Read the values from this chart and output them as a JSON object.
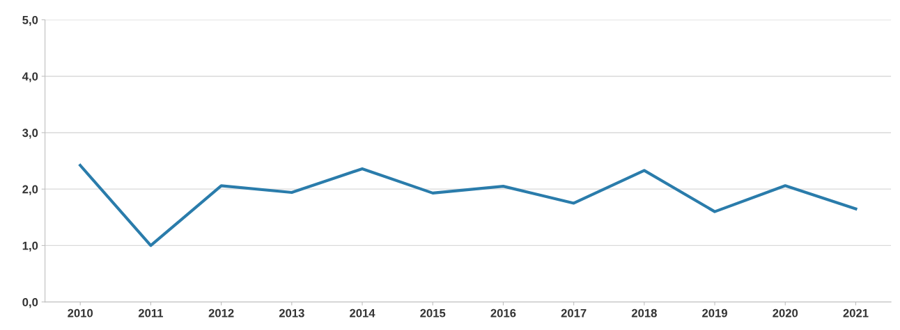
{
  "chart_data": {
    "type": "line",
    "categories": [
      "2010",
      "2011",
      "2012",
      "2013",
      "2014",
      "2015",
      "2016",
      "2017",
      "2018",
      "2019",
      "2020",
      "2021"
    ],
    "series": [
      {
        "color": "#2a7cab",
        "values": [
          2.42,
          1.0,
          2.06,
          1.94,
          2.36,
          1.93,
          2.05,
          1.75,
          2.33,
          1.6,
          2.06,
          1.65
        ]
      }
    ],
    "ylim": [
      0,
      5
    ],
    "yticks": [
      {
        "value": 0,
        "label": "0,0"
      },
      {
        "value": 1,
        "label": "1,0"
      },
      {
        "value": 2,
        "label": "2,0"
      },
      {
        "value": 3,
        "label": "3,0"
      },
      {
        "value": 4,
        "label": "4,0"
      },
      {
        "value": 5,
        "label": "5,0"
      }
    ],
    "grid": "y",
    "marker": "none",
    "line_style": "solid"
  }
}
